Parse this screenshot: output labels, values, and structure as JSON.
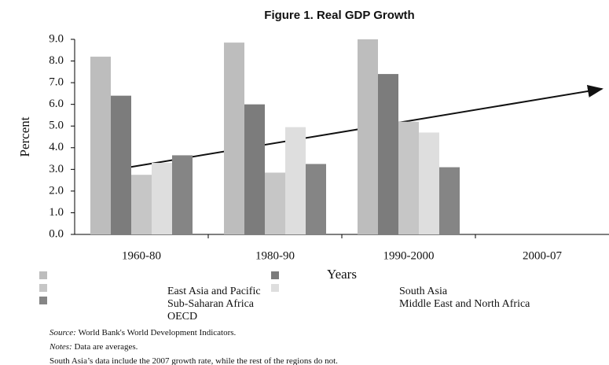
{
  "chart_data": {
    "type": "bar",
    "title": "Figure 1. Real GDP Growth",
    "x_label": "Years",
    "y_label": "Percent",
    "categories": [
      "1960-80",
      "1980-90",
      "1990-2000",
      "2000-07"
    ],
    "series": [
      {
        "name": "East Asia and Pacific",
        "color": "#bdbdbd",
        "values": [
          8.2,
          8.85,
          9.0,
          null
        ]
      },
      {
        "name": "South Asia",
        "color": "#7c7c7c",
        "values": [
          6.4,
          6.0,
          7.4,
          null
        ]
      },
      {
        "name": "Sub-Saharan Africa",
        "color": "#c6c6c6",
        "values": [
          2.75,
          2.85,
          5.2,
          null
        ]
      },
      {
        "name": "Middle East and North Africa",
        "color": "#dedede",
        "values": [
          3.3,
          4.95,
          4.7,
          null
        ]
      },
      {
        "name": "OECD",
        "color": "#858585",
        "values": [
          3.65,
          3.25,
          3.1,
          null
        ]
      }
    ],
    "ylim": [
      0,
      9
    ],
    "yticks": [
      {
        "value": 0,
        "label": "0.0"
      },
      {
        "value": 1,
        "label": "1.0"
      },
      {
        "value": 2,
        "label": "2.0"
      },
      {
        "value": 3,
        "label": "3.0"
      },
      {
        "value": 4,
        "label": "4.0"
      },
      {
        "value": 5,
        "label": "5.0"
      },
      {
        "value": 6,
        "label": "6.0"
      },
      {
        "value": 7,
        "label": "7.0"
      },
      {
        "value": 8,
        "label": "8.0"
      },
      {
        "value": 9,
        "label": "9.0"
      }
    ],
    "grid": false
  },
  "notes": [
    {
      "label": "Source:",
      "text": "World Bank's World Development Indicators."
    },
    {
      "label": "Notes:",
      "text": "Data are averages."
    },
    {
      "text": "South Asia’s data include the 2007 growth rate, while the rest of the regions do not."
    }
  ]
}
